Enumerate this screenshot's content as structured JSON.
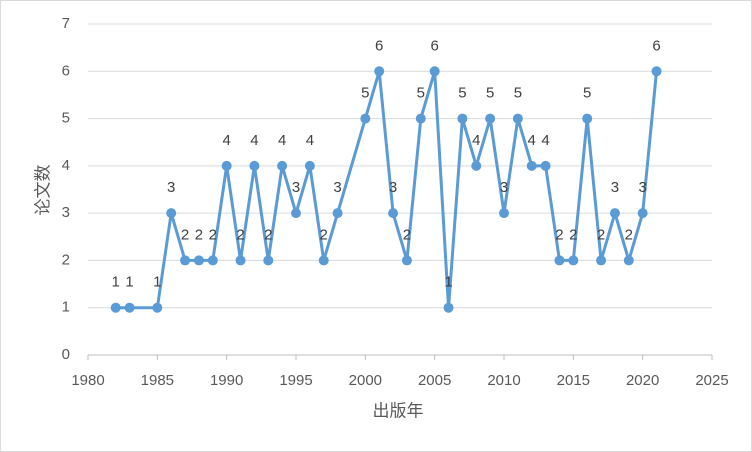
{
  "chart_data": {
    "type": "line",
    "x_label": "出版年",
    "y_label": "论文数",
    "x": [
      1982,
      1983,
      1985,
      1986,
      1987,
      1988,
      1989,
      1990,
      1991,
      1992,
      1993,
      1994,
      1995,
      1996,
      1997,
      1998,
      2000,
      2001,
      2002,
      2003,
      2004,
      2005,
      2006,
      2007,
      2008,
      2009,
      2010,
      2011,
      2012,
      2013,
      2014,
      2015,
      2016,
      2017,
      2018,
      2019,
      2020,
      2021
    ],
    "values": [
      1,
      1,
      1,
      3,
      2,
      2,
      2,
      4,
      2,
      4,
      2,
      4,
      3,
      4,
      2,
      3,
      5,
      6,
      3,
      2,
      5,
      6,
      1,
      5,
      4,
      5,
      3,
      5,
      4,
      4,
      2,
      2,
      5,
      2,
      3,
      2,
      3,
      6
    ],
    "color": "#5b9bd5",
    "xlim": [
      1980,
      2025
    ],
    "xticks": [
      1980,
      1985,
      1990,
      1995,
      2000,
      2005,
      2010,
      2015,
      2020,
      2025
    ],
    "ylim": [
      0,
      7
    ],
    "yticks": [
      0,
      1,
      2,
      3,
      4,
      5,
      6,
      7
    ],
    "grid": true
  }
}
